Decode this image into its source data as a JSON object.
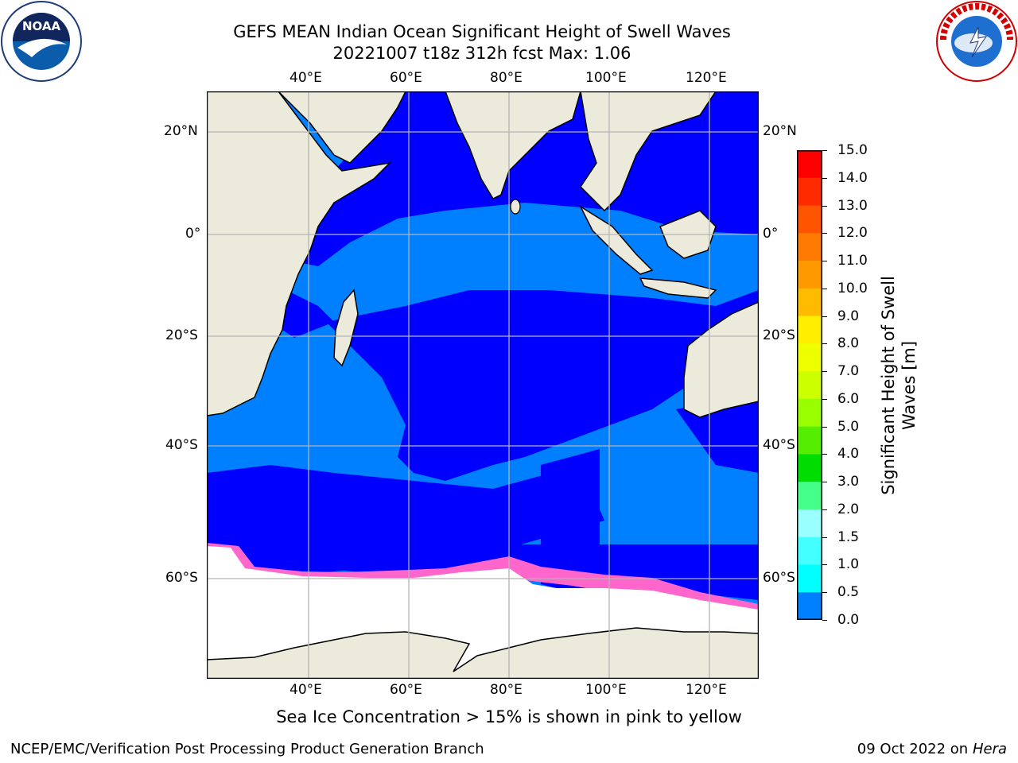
{
  "header": {
    "title_line1": "GEFS MEAN Indian Ocean Significant Height of Swell Waves",
    "title_line2": "20221007 t18z 312h fcst   Max: 1.06"
  },
  "logos": {
    "left": {
      "name": "noaa-logo",
      "text": "NOAA",
      "ring_text": "NATIONAL OCEANIC AND ATMOSPHERIC ADMINISTRATION · U.S. DEPARTMENT OF COMMERCE"
    },
    "right": {
      "name": "nws-logo",
      "ring_text": "NATIONAL WEATHER SERVICE"
    }
  },
  "map": {
    "lon_labels_top": [
      "40°E",
      "60°E",
      "80°E",
      "100°E",
      "120°E"
    ],
    "lon_labels_bottom": [
      "40°E",
      "60°E",
      "80°E",
      "100°E",
      "120°E"
    ],
    "lat_labels_left": [
      "20°N",
      "0°",
      "20°S",
      "40°S",
      "60°S"
    ],
    "lat_labels_right": [
      "20°N",
      "0°",
      "20°S",
      "40°S",
      "60°S"
    ],
    "colors": {
      "land": "#ecebdb",
      "swell_0_0p5": "#0000ff",
      "swell_0p5_1": "#0080ff",
      "ice": "#ffffff",
      "ice_edge": "#ff66cc",
      "grid": "#b4b4b4"
    }
  },
  "colorbar": {
    "ticks": [
      "15.0",
      "14.0",
      "13.0",
      "12.0",
      "11.0",
      "10.0",
      "9.0",
      "8.0",
      "7.0",
      "6.0",
      "5.0",
      "4.0",
      "3.0",
      "2.0",
      "1.5",
      "1.0",
      "0.5",
      "0.0"
    ],
    "colors_top_to_bottom": [
      "#ff0000",
      "#ff2a00",
      "#ff5500",
      "#ff7a00",
      "#ff9900",
      "#ffbb00",
      "#ffee00",
      "#eeff00",
      "#ccff00",
      "#99ff00",
      "#55ee00",
      "#00dd00",
      "#44ff88",
      "#99ffff",
      "#44ffff",
      "#00ffff",
      "#0080ff",
      "#0000ff"
    ],
    "label_line1": "Significant Height of Swell",
    "label_line2": "Waves [m]"
  },
  "footer": {
    "caption": "Sea Ice Concentration > 15% is shown in pink to yellow",
    "left": "NCEP/EMC/Verification Post Processing Product Generation Branch",
    "right_date": "09 Oct 2022 on ",
    "right_host": "Hera"
  }
}
